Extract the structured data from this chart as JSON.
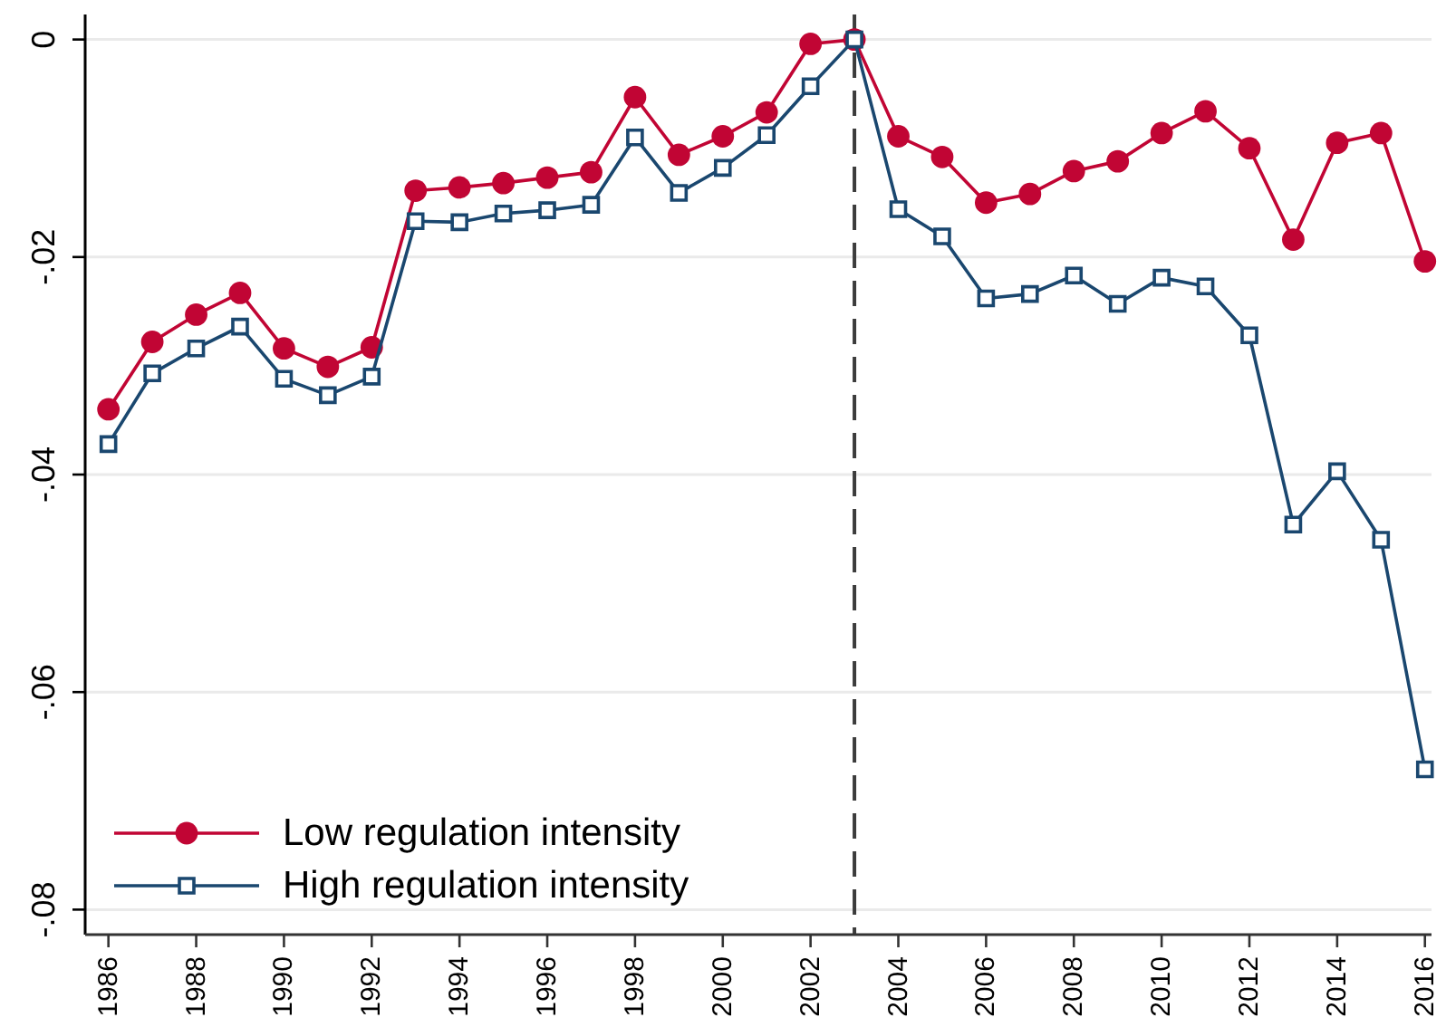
{
  "chart_data": {
    "type": "line",
    "x": [
      1986,
      1987,
      1988,
      1989,
      1990,
      1991,
      1992,
      1993,
      1994,
      1995,
      1996,
      1997,
      1998,
      1999,
      2000,
      2001,
      2002,
      2003,
      2004,
      2005,
      2006,
      2007,
      2008,
      2009,
      2010,
      2011,
      2012,
      2013,
      2014,
      2015,
      2016
    ],
    "series": [
      {
        "name": "Low regulation intensity",
        "color": "#c10534",
        "marker": "circle",
        "values": [
          -0.034,
          -0.0278,
          -0.0253,
          -0.0233,
          -0.0284,
          -0.0301,
          -0.0283,
          -0.0139,
          -0.0136,
          -0.0132,
          -0.0127,
          -0.0122,
          -0.0053,
          -0.0106,
          -0.0089,
          -0.0067,
          -0.0004,
          0,
          -0.0089,
          -0.0108,
          -0.015,
          -0.0142,
          -0.0121,
          -0.0112,
          -0.0086,
          -0.0066,
          -0.01,
          -0.0184,
          -0.0095,
          -0.0086,
          -0.0204
        ]
      },
      {
        "name": "High regulation intensity",
        "color": "#1a476f",
        "marker": "square",
        "values": [
          -0.0372,
          -0.0307,
          -0.0284,
          -0.0264,
          -0.0312,
          -0.0327,
          -0.031,
          -0.0167,
          -0.0168,
          -0.016,
          -0.0157,
          -0.0152,
          -0.009,
          -0.0141,
          -0.0118,
          -0.0088,
          -0.0043,
          0,
          -0.0156,
          -0.0181,
          -0.0238,
          -0.0234,
          -0.0217,
          -0.0243,
          -0.0219,
          -0.0227,
          -0.0272,
          -0.0446,
          -0.0397,
          -0.046,
          -0.0671
        ]
      }
    ],
    "xlim": [
      1985.47,
      2016.15
    ],
    "ylim": [
      -0.0823,
      0.0023
    ],
    "xticks": [
      1986,
      1988,
      1990,
      1992,
      1994,
      1996,
      1998,
      2000,
      2002,
      2004,
      2006,
      2008,
      2010,
      2012,
      2014,
      2016
    ],
    "yticks": [
      {
        "value": 0,
        "label": "0"
      },
      {
        "value": -0.02,
        "label": "-.02"
      },
      {
        "value": -0.04,
        "label": "-.04"
      },
      {
        "value": -0.06,
        "label": "-.06"
      },
      {
        "value": -0.08,
        "label": "-.08"
      }
    ],
    "ref_lines": [
      {
        "axis": "x",
        "value": 2003,
        "color": "#3c3c3c",
        "line_style": "dashed"
      }
    ],
    "grid": "y",
    "legend": "bottom left",
    "line_style": "solid"
  }
}
